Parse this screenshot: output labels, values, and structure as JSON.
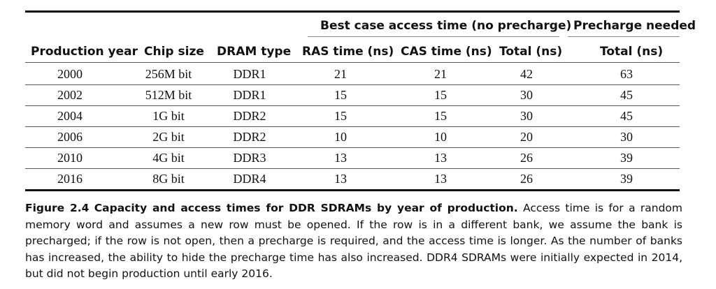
{
  "table": {
    "group_headers": {
      "best_case": "Best case access time (no precharge)",
      "precharge": "Precharge needed"
    },
    "columns": [
      "Production year",
      "Chip size",
      "DRAM type",
      "RAS time (ns)",
      "CAS time (ns)",
      "Total (ns)",
      "Total (ns)"
    ],
    "rows": [
      [
        "2000",
        "256M bit",
        "DDR1",
        "21",
        "21",
        "42",
        "63"
      ],
      [
        "2002",
        "512M bit",
        "DDR1",
        "15",
        "15",
        "30",
        "45"
      ],
      [
        "2004",
        "1G bit",
        "DDR2",
        "15",
        "15",
        "30",
        "45"
      ],
      [
        "2006",
        "2G bit",
        "DDR2",
        "10",
        "10",
        "20",
        "30"
      ],
      [
        "2010",
        "4G bit",
        "DDR3",
        "13",
        "13",
        "26",
        "39"
      ],
      [
        "2016",
        "8G bit",
        "DDR4",
        "13",
        "13",
        "26",
        "39"
      ]
    ]
  },
  "caption": {
    "label": "Figure 2.4",
    "title": "Capacity and access times for DDR SDRAMs by year of production.",
    "text": "Access time is for a random memory word and assumes a new row must be opened. If the row is in a different bank, we assume the bank is precharged; if the row is not open, then a precharge is required, and the access time is longer. As the number of banks has increased, the ability to hide the precharge time has also increased. DDR4 SDRAMs were initially expected in 2014, but did not begin production until early 2016."
  }
}
